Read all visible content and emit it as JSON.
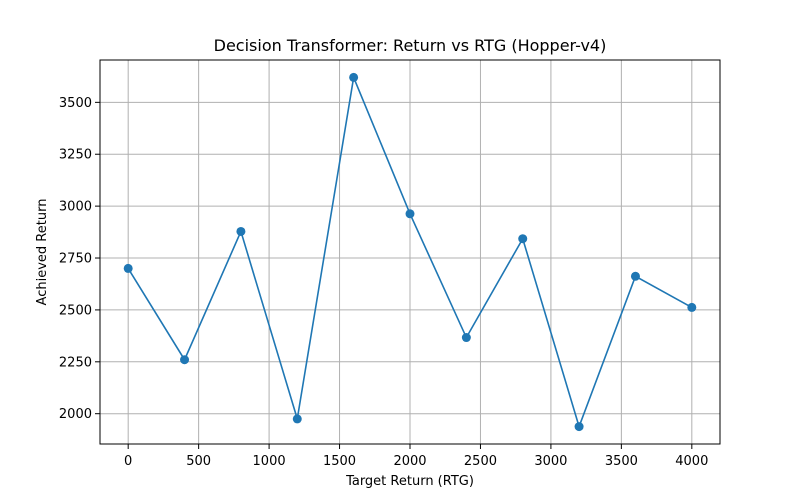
{
  "chart_data": {
    "type": "line",
    "title": "Decision Transformer: Return vs RTG (Hopper-v4)",
    "xlabel": "Target Return (RTG)",
    "ylabel": "Achieved Return",
    "x": [
      0,
      400,
      800,
      1200,
      1600,
      2000,
      2400,
      2800,
      3200,
      3600,
      4000
    ],
    "series": [
      {
        "values": [
          2700,
          2260,
          2878,
          1975,
          3620,
          2963,
          2367,
          2843,
          1938,
          2662,
          2512
        ]
      }
    ],
    "xticks": [
      0,
      500,
      1000,
      1500,
      2000,
      2500,
      3000,
      3500,
      4000
    ],
    "yticks": [
      2000,
      2250,
      2500,
      2750,
      3000,
      3250,
      3500
    ],
    "xlim": [
      -200,
      4200
    ],
    "ylim": [
      1854,
      3704
    ],
    "grid": true,
    "line_color": "#1f77b4",
    "marker": "circle"
  }
}
